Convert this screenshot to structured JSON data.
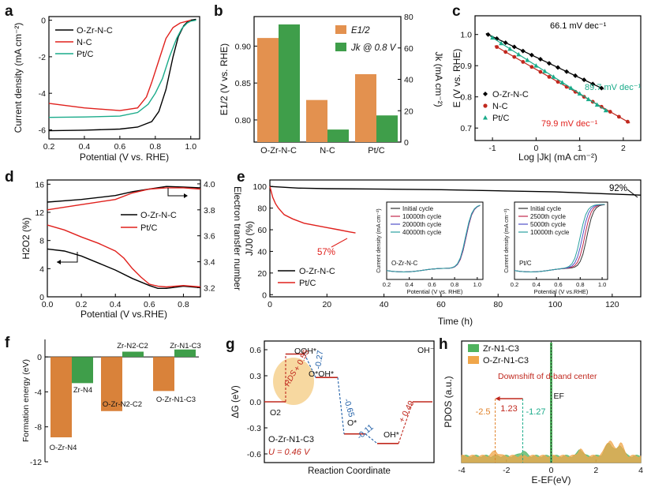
{
  "figure": {
    "panel_labels": [
      "a",
      "b",
      "c",
      "d",
      "e",
      "f",
      "g",
      "h"
    ]
  },
  "chart_data": [
    {
      "id": "a",
      "type": "line",
      "xlabel": "Potential (V vs. RHE)",
      "ylabel": "Current density (mA cm⁻²)",
      "xlim": [
        0.2,
        1.05
      ],
      "ylim": [
        -6.5,
        0.2
      ],
      "xticks": [
        "0.2",
        "0.4",
        "0.6",
        "0.8",
        "1.0"
      ],
      "yticks": [
        "0",
        "-2",
        "-4",
        "-6"
      ],
      "legend": "top-left",
      "series": [
        {
          "name": "O-Zr-N-C",
          "color": "#000000",
          "x": [
            0.2,
            0.4,
            0.6,
            0.7,
            0.78,
            0.82,
            0.86,
            0.9,
            0.93,
            0.96,
            0.98,
            1.0,
            1.03
          ],
          "y": [
            -6.05,
            -6.02,
            -5.96,
            -5.85,
            -5.55,
            -5.0,
            -3.8,
            -2.0,
            -0.9,
            -0.3,
            -0.1,
            0.0,
            0.05
          ]
        },
        {
          "name": "N-C",
          "color": "#e0201c",
          "x": [
            0.2,
            0.4,
            0.6,
            0.7,
            0.75,
            0.78,
            0.82,
            0.86,
            0.9,
            0.94,
            0.98,
            1.0
          ],
          "y": [
            -4.55,
            -4.8,
            -4.95,
            -4.8,
            -4.2,
            -3.4,
            -2.2,
            -1.0,
            -0.4,
            -0.15,
            -0.05,
            0.0
          ]
        },
        {
          "name": "Pt/C",
          "color": "#1aab8a",
          "x": [
            0.2,
            0.4,
            0.6,
            0.7,
            0.76,
            0.8,
            0.84,
            0.88,
            0.92,
            0.95,
            0.98,
            1.0,
            1.03
          ],
          "y": [
            -5.32,
            -5.3,
            -5.25,
            -5.05,
            -4.6,
            -4.0,
            -3.2,
            -2.0,
            -1.0,
            -0.45,
            -0.15,
            -0.05,
            0.0
          ]
        }
      ]
    },
    {
      "id": "b",
      "type": "bar",
      "categories": [
        "O-Zr-N-C",
        "N-C",
        "Pt/C"
      ],
      "ylabel_left": "E1/2 (V vs. RHE)",
      "ylabel_right": "Jk (mA cm⁻²)",
      "ylim_left": [
        0.77,
        0.94
      ],
      "ylim_right": [
        0,
        80
      ],
      "yticks_left": [
        "0.80",
        "0.85",
        "0.90"
      ],
      "yticks_right": [
        "0",
        "20",
        "40",
        "60",
        "80"
      ],
      "legend": "top-right",
      "legend_labels": [
        "E1/2",
        "Jk @ 0.8 V"
      ],
      "series": [
        {
          "name": "E1/2",
          "axis": "left",
          "color": "#e3914f",
          "values": [
            0.911,
            0.827,
            0.862
          ]
        },
        {
          "name": "Jk @ 0.8 V",
          "axis": "right",
          "color": "#3f9e4a",
          "values": [
            75,
            8,
            17
          ]
        }
      ]
    },
    {
      "id": "c",
      "type": "scatter",
      "xlabel": "Log |Jk| (mA cm⁻²)",
      "ylabel": "E (V vs. RHE)",
      "xlim": [
        -1.4,
        2.4
      ],
      "ylim": [
        0.66,
        1.06
      ],
      "xticks": [
        "-1",
        "0",
        "1",
        "2"
      ],
      "yticks": [
        "0.7",
        "0.8",
        "0.9",
        "1.0"
      ],
      "legend": "bottom-left",
      "annotations": [
        {
          "text": "66.1 mV dec⁻¹",
          "color": "#000000"
        },
        {
          "text": "89.7 mV dec⁻¹",
          "color": "#1aab8a"
        },
        {
          "text": "79.9 mV dec⁻¹",
          "color": "#e0201c"
        }
      ],
      "series": [
        {
          "name": "O-Zr-N-C",
          "marker": "diamond",
          "color": "#000000",
          "x": [
            -1.1,
            -0.9,
            -0.7,
            -0.5,
            -0.3,
            -0.1,
            0.1,
            0.3,
            0.5,
            0.7,
            0.9,
            1.1,
            1.3,
            1.5
          ],
          "y_start": 1.0,
          "slope": -0.0661
        },
        {
          "name": "N-C",
          "marker": "circle",
          "color": "#c0281e",
          "x": [
            -0.9,
            -0.7,
            -0.5,
            -0.3,
            -0.1,
            0.1,
            0.3,
            0.5,
            0.7,
            0.9,
            1.1,
            1.3,
            1.5,
            1.7,
            1.9,
            2.1
          ],
          "y_start": 0.96,
          "slope": -0.0799
        },
        {
          "name": "Pt/C",
          "marker": "triangle",
          "color": "#1aab8a",
          "x": [
            -1.0,
            -0.8,
            -0.6,
            -0.4,
            -0.2,
            0.0,
            0.2,
            0.4,
            0.6,
            0.8,
            1.0,
            1.2,
            1.4,
            1.6
          ],
          "y_start": 0.99,
          "slope": -0.0897
        }
      ]
    },
    {
      "id": "d",
      "type": "line",
      "xlabel": "Potential (V vs.RHE)",
      "ylabel_left": "H2O2 (%)",
      "ylabel_right": "Electron transfer number",
      "xlim": [
        0.0,
        0.9
      ],
      "ylim_left": [
        0,
        16.6
      ],
      "ylim_right": [
        3.13,
        4.03
      ],
      "xticks": [
        "0.0",
        "0.2",
        "0.4",
        "0.6",
        "0.8"
      ],
      "yticks_left": [
        "0",
        "4",
        "8",
        "12",
        "16"
      ],
      "yticks_right": [
        "3.2",
        "3.4",
        "3.6",
        "3.8",
        "4.0"
      ],
      "legend": "center-right",
      "series": [
        {
          "name": "O-Zr-N-C",
          "quantity": "H2O2 (%)",
          "color": "#000000",
          "x": [
            0.0,
            0.1,
            0.2,
            0.3,
            0.4,
            0.5,
            0.6,
            0.65,
            0.7,
            0.8,
            0.9
          ],
          "y": [
            6.8,
            6.5,
            5.8,
            4.8,
            3.8,
            2.6,
            1.6,
            1.2,
            1.2,
            1.5,
            1.3
          ]
        },
        {
          "name": "Pt/C",
          "quantity": "H2O2 (%)",
          "color": "#e0201c",
          "x": [
            0.0,
            0.1,
            0.2,
            0.3,
            0.4,
            0.45,
            0.5,
            0.55,
            0.6,
            0.65,
            0.7,
            0.8,
            0.9
          ],
          "y": [
            10.2,
            9.5,
            8.5,
            7.6,
            6.5,
            5.5,
            4.0,
            2.8,
            1.8,
            1.5,
            1.4,
            1.6,
            1.4
          ]
        },
        {
          "name": "O-Zr-N-C",
          "quantity": "n",
          "color": "#000000",
          "x": [
            0.0,
            0.2,
            0.4,
            0.5,
            0.6,
            0.7,
            0.8,
            0.9
          ],
          "y": [
            3.86,
            3.88,
            3.91,
            3.94,
            3.96,
            3.98,
            3.975,
            3.97
          ]
        },
        {
          "name": "Pt/C",
          "quantity": "n",
          "color": "#e0201c",
          "x": [
            0.0,
            0.2,
            0.4,
            0.5,
            0.6,
            0.7,
            0.8,
            0.9
          ],
          "y": [
            3.8,
            3.84,
            3.88,
            3.93,
            3.96,
            3.97,
            3.97,
            3.96
          ]
        }
      ]
    },
    {
      "id": "e",
      "type": "line",
      "xlabel": "Time (h)",
      "ylabel": "J/J0 (%)",
      "xlim": [
        0,
        130
      ],
      "ylim": [
        -2,
        106
      ],
      "xticks": [
        "0",
        "20",
        "40",
        "60",
        "80",
        "100",
        "120"
      ],
      "yticks": [
        "0",
        "20",
        "40",
        "60",
        "80",
        "100"
      ],
      "legend": "bottom-left",
      "annotations": [
        {
          "text": "92%",
          "color": "#000000"
        },
        {
          "text": "57%",
          "color": "#e0201c"
        }
      ],
      "series": [
        {
          "name": "O-Zr-N-C",
          "color": "#000000",
          "x": [
            0,
            10,
            20,
            40,
            60,
            80,
            100,
            120,
            130
          ],
          "y": [
            100,
            98.5,
            98,
            97.5,
            97,
            96,
            95,
            93,
            92
          ]
        },
        {
          "name": "Pt/C",
          "color": "#e0201c",
          "x": [
            0,
            1,
            2,
            3,
            5,
            8,
            12,
            16,
            20,
            24,
            28,
            30
          ],
          "y": [
            100,
            90,
            84,
            80,
            74,
            70,
            66,
            64,
            62,
            60,
            58,
            57
          ]
        }
      ],
      "insets": [
        {
          "id": "e-inset-1",
          "label": "O-Zr-N-C",
          "xlabel": "Potential (V vs. RHE)",
          "ylabel": "Current density (mA cm⁻²)",
          "xticks": [
            "0.2",
            "0.4",
            "0.6",
            "0.8",
            "1.0"
          ],
          "legend": [
            "Initial    cycle",
            "10000th  cycle",
            "20000th  cycle",
            "40000th  cycle"
          ],
          "colors": [
            "#333333",
            "#c0284e",
            "#5050c8",
            "#2aa0a0"
          ],
          "half_wave_potentials": [
            0.9,
            0.9,
            0.898,
            0.895
          ]
        },
        {
          "id": "e-inset-2",
          "label": "Pt/C",
          "xlabel": "Potential (V vs.RHE)",
          "ylabel": "Current density (mA cm⁻²)",
          "xticks": [
            "0.2",
            "0.4",
            "0.6",
            "0.8",
            "1.0"
          ],
          "legend": [
            "Initial    cycle",
            "2500th    cycle",
            "5000th    cycle",
            "10000th  cycle"
          ],
          "colors": [
            "#333333",
            "#c0284e",
            "#5050c8",
            "#2aa0a0"
          ],
          "half_wave_potentials": [
            0.86,
            0.84,
            0.82,
            0.8
          ]
        }
      ]
    },
    {
      "id": "f",
      "type": "bar",
      "ylabel": "Formation energy (eV)",
      "ylim": [
        -12,
        2
      ],
      "yticks": [
        "0",
        "-4",
        "-8",
        "-12"
      ],
      "bars": [
        {
          "label": "O-Zr-N4",
          "value": -9.2,
          "color": "#d9823a"
        },
        {
          "label": "Zr-N4",
          "value": -3.0,
          "color": "#3f9e4a"
        },
        {
          "label": "O-Zr-N2-C2",
          "value": -6.2,
          "color": "#d9823a"
        },
        {
          "label": "Zr-N2-C2",
          "value": 0.6,
          "color": "#3f9e4a"
        },
        {
          "label": "O-Zr-N1-C3",
          "value": -3.9,
          "color": "#d9823a"
        },
        {
          "label": "Zr-N1-C3",
          "value": 0.85,
          "color": "#3f9e4a"
        }
      ]
    },
    {
      "id": "g",
      "type": "line",
      "xlabel": "Reaction Coordinate",
      "ylabel": "ΔG (eV)",
      "ylim": [
        -0.7,
        0.7
      ],
      "yticks": [
        "0.6",
        "0.3",
        "0.0",
        "-0.3",
        "-0.6"
      ],
      "title_text": "O-Zr-N1-C3",
      "u_text": "U = 0.46 V",
      "rds_text": "RDS",
      "states": [
        {
          "label": "O2",
          "value": 0.0
        },
        {
          "label": "OOH*",
          "value": 0.55
        },
        {
          "label": "O*OH*",
          "value": 0.28
        },
        {
          "label": "O*",
          "value": -0.37
        },
        {
          "label": "OH*",
          "value": -0.48
        },
        {
          "label": "OH⁻",
          "value": 0.0
        }
      ],
      "steps": [
        "+ 0.55",
        "-0.27",
        "-0.65",
        "-0.11",
        "+ 0.49"
      ]
    },
    {
      "id": "h",
      "type": "area",
      "xlabel": "E-EF(eV)",
      "ylabel": "PDOS (a.u.)",
      "xlim": [
        -4,
        4
      ],
      "xticks": [
        "-4",
        "-2",
        "0",
        "2",
        "4"
      ],
      "legend": "top-left",
      "annotation_text": "Downshift of d-band center",
      "shift_value": "1.23",
      "ef_label": "EF",
      "series": [
        {
          "name": "Zr-N1-C3",
          "color": "#4fb35e",
          "d_band_center": -1.27
        },
        {
          "name": "O-Zr-N1-C3",
          "color": "#f0a64a",
          "d_band_center": -2.5
        }
      ]
    }
  ]
}
